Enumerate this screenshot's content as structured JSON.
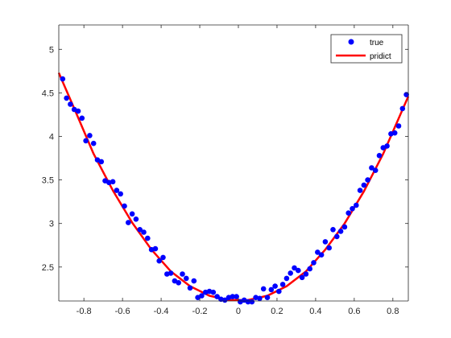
{
  "chart_data": {
    "type": "scatter",
    "title": "",
    "xlabel": "",
    "ylabel": "",
    "xlim": [
      -0.93,
      0.88
    ],
    "ylim": [
      2.11,
      5.28
    ],
    "xticks": [
      -0.8,
      -0.6,
      -0.4,
      -0.2,
      0,
      0.2,
      0.4,
      0.6,
      0.8
    ],
    "xtick_labels": [
      "-0.8",
      "-0.6",
      "-0.4",
      "-0.2",
      "0",
      "0.2",
      "0.4",
      "0.6",
      "0.8"
    ],
    "yticks": [
      2.5,
      3,
      3.5,
      4,
      4.5,
      5
    ],
    "ytick_labels": [
      "2.5",
      "3",
      "3.5",
      "4",
      "4.5",
      "5"
    ],
    "grid": false,
    "legend_position": "top-right",
    "series": [
      {
        "name": "true",
        "kind": "markers",
        "color": "#0000ff",
        "points": [
          [
            -0.91,
            4.66
          ],
          [
            -0.89,
            4.44
          ],
          [
            -0.87,
            4.37
          ],
          [
            -0.85,
            4.31
          ],
          [
            -0.83,
            4.29
          ],
          [
            -0.81,
            4.21
          ],
          [
            -0.79,
            3.95
          ],
          [
            -0.77,
            4.01
          ],
          [
            -0.75,
            3.92
          ],
          [
            -0.73,
            3.73
          ],
          [
            -0.71,
            3.71
          ],
          [
            -0.69,
            3.49
          ],
          [
            -0.67,
            3.47
          ],
          [
            -0.65,
            3.48
          ],
          [
            -0.63,
            3.38
          ],
          [
            -0.61,
            3.34
          ],
          [
            -0.59,
            3.2
          ],
          [
            -0.57,
            3.01
          ],
          [
            -0.55,
            3.11
          ],
          [
            -0.53,
            3.05
          ],
          [
            -0.51,
            2.93
          ],
          [
            -0.49,
            2.9
          ],
          [
            -0.47,
            2.83
          ],
          [
            -0.45,
            2.7
          ],
          [
            -0.43,
            2.71
          ],
          [
            -0.41,
            2.57
          ],
          [
            -0.39,
            2.61
          ],
          [
            -0.37,
            2.42
          ],
          [
            -0.35,
            2.43
          ],
          [
            -0.33,
            2.34
          ],
          [
            -0.31,
            2.32
          ],
          [
            -0.29,
            2.42
          ],
          [
            -0.27,
            2.37
          ],
          [
            -0.25,
            2.26
          ],
          [
            -0.23,
            2.34
          ],
          [
            -0.21,
            2.15
          ],
          [
            -0.19,
            2.17
          ],
          [
            -0.17,
            2.21
          ],
          [
            -0.15,
            2.22
          ],
          [
            -0.13,
            2.21
          ],
          [
            -0.11,
            2.16
          ],
          [
            -0.09,
            2.13
          ],
          [
            -0.07,
            2.12
          ],
          [
            -0.05,
            2.15
          ],
          [
            -0.03,
            2.16
          ],
          [
            -0.01,
            2.16
          ],
          [
            0.01,
            2.1
          ],
          [
            0.03,
            2.12
          ],
          [
            0.05,
            2.1
          ],
          [
            0.07,
            2.1
          ],
          [
            0.09,
            2.15
          ],
          [
            0.11,
            2.14
          ],
          [
            0.13,
            2.25
          ],
          [
            0.15,
            2.15
          ],
          [
            0.17,
            2.24
          ],
          [
            0.19,
            2.28
          ],
          [
            0.21,
            2.22
          ],
          [
            0.23,
            2.3
          ],
          [
            0.25,
            2.37
          ],
          [
            0.27,
            2.43
          ],
          [
            0.29,
            2.49
          ],
          [
            0.31,
            2.46
          ],
          [
            0.33,
            2.38
          ],
          [
            0.35,
            2.42
          ],
          [
            0.37,
            2.48
          ],
          [
            0.39,
            2.55
          ],
          [
            0.41,
            2.67
          ],
          [
            0.43,
            2.64
          ],
          [
            0.45,
            2.79
          ],
          [
            0.47,
            2.72
          ],
          [
            0.49,
            2.93
          ],
          [
            0.51,
            2.85
          ],
          [
            0.53,
            2.91
          ],
          [
            0.55,
            2.96
          ],
          [
            0.57,
            3.12
          ],
          [
            0.59,
            3.17
          ],
          [
            0.61,
            3.21
          ],
          [
            0.63,
            3.38
          ],
          [
            0.65,
            3.44
          ],
          [
            0.67,
            3.5
          ],
          [
            0.69,
            3.64
          ],
          [
            0.71,
            3.61
          ],
          [
            0.73,
            3.78
          ],
          [
            0.75,
            3.87
          ],
          [
            0.77,
            3.89
          ],
          [
            0.79,
            4.03
          ],
          [
            0.81,
            4.04
          ],
          [
            0.83,
            4.12
          ],
          [
            0.85,
            4.32
          ],
          [
            0.87,
            4.48
          ]
        ]
      },
      {
        "name": "pridict",
        "kind": "line",
        "color": "#ff0000",
        "points": [
          [
            -0.93,
            4.73
          ],
          [
            -0.85,
            4.32
          ],
          [
            -0.75,
            3.8
          ],
          [
            -0.65,
            3.38
          ],
          [
            -0.55,
            3.01
          ],
          [
            -0.45,
            2.7
          ],
          [
            -0.35,
            2.45
          ],
          [
            -0.25,
            2.28
          ],
          [
            -0.15,
            2.17
          ],
          [
            -0.05,
            2.12
          ],
          [
            0.05,
            2.12
          ],
          [
            0.15,
            2.17
          ],
          [
            0.25,
            2.28
          ],
          [
            0.35,
            2.45
          ],
          [
            0.45,
            2.7
          ],
          [
            0.55,
            3.0
          ],
          [
            0.65,
            3.37
          ],
          [
            0.75,
            3.8
          ],
          [
            0.88,
            4.46
          ]
        ]
      }
    ]
  }
}
